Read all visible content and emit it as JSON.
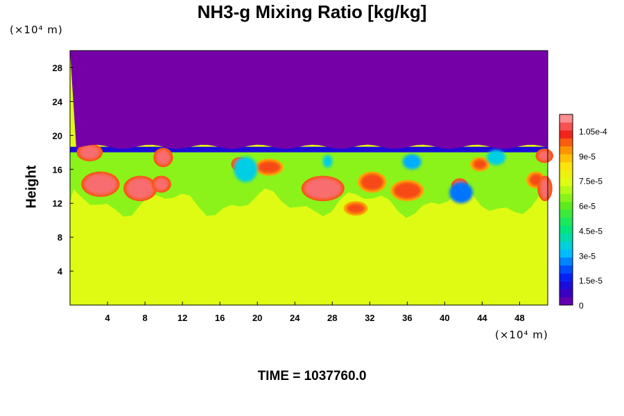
{
  "chart_data": {
    "type": "heatmap",
    "title": "NH3-g Mixing Ratio [kg/kg]",
    "ylabel": "Height",
    "xlabel": "",
    "x_unit": "(×10⁴ m)",
    "y_unit": "(×10⁴ m)",
    "xlim": [
      0,
      51
    ],
    "ylim": [
      0,
      30
    ],
    "xticks": [
      "4",
      "8",
      "12",
      "16",
      "20",
      "24",
      "28",
      "32",
      "36",
      "40",
      "44",
      "48"
    ],
    "yticks": [
      "4",
      "8",
      "12",
      "16",
      "20",
      "24",
      "28"
    ],
    "colorbar": {
      "range": [
        0,
        0.000115
      ],
      "ticks": [
        "0",
        "1.5e-5",
        "3e-5",
        "4.5e-5",
        "6e-5",
        "7.5e-5",
        "9e-5",
        "1.05e-4"
      ]
    },
    "footer": "TIME = 1037760.0",
    "layers": {
      "upper_region_value": 0,
      "upper_region_y_from": 18.5,
      "mixing_band_y": [
        12,
        18.5
      ],
      "mixing_band_value": 6.5e-05,
      "lower_region_value": 7.5e-05
    },
    "features": [
      {
        "kind": "patch",
        "x": 1.0,
        "y": 17.2,
        "w": 2.2,
        "h": 1.6,
        "value": 0.00011
      },
      {
        "kind": "patch",
        "x": 1.5,
        "y": 13.0,
        "w": 3.5,
        "h": 2.5,
        "value": 0.00011
      },
      {
        "kind": "patch",
        "x": 6.0,
        "y": 12.5,
        "w": 3.0,
        "h": 2.5,
        "value": 0.00011
      },
      {
        "kind": "patch",
        "x": 9.0,
        "y": 13.5,
        "w": 1.5,
        "h": 1.5,
        "value": 0.00011
      },
      {
        "kind": "patch",
        "x": 9.2,
        "y": 16.5,
        "w": 1.5,
        "h": 1.8,
        "value": 0.00011
      },
      {
        "kind": "patch",
        "x": 17.5,
        "y": 16.0,
        "w": 1.2,
        "h": 1.2,
        "value": 0.00011
      },
      {
        "kind": "patch",
        "x": 20.0,
        "y": 15.5,
        "w": 2.5,
        "h": 1.5,
        "value": 0.0001
      },
      {
        "kind": "patch",
        "x": 25.0,
        "y": 12.5,
        "w": 4.0,
        "h": 2.5,
        "value": 0.00011
      },
      {
        "kind": "patch",
        "x": 29.5,
        "y": 10.8,
        "w": 2.0,
        "h": 1.2,
        "value": 0.0001
      },
      {
        "kind": "patch",
        "x": 31.0,
        "y": 13.5,
        "w": 2.5,
        "h": 2.0,
        "value": 0.0001
      },
      {
        "kind": "patch",
        "x": 34.5,
        "y": 12.5,
        "w": 3.0,
        "h": 2.0,
        "value": 0.0001
      },
      {
        "kind": "patch",
        "x": 41.0,
        "y": 13.5,
        "w": 1.2,
        "h": 1.2,
        "value": 0.00011
      },
      {
        "kind": "patch",
        "x": 43.0,
        "y": 16.0,
        "w": 1.5,
        "h": 1.2,
        "value": 0.0001
      },
      {
        "kind": "patch",
        "x": 49.0,
        "y": 14.0,
        "w": 1.5,
        "h": 1.5,
        "value": 0.0001
      },
      {
        "kind": "patch",
        "x": 50.2,
        "y": 12.5,
        "w": 1.0,
        "h": 2.5,
        "value": 0.00011
      },
      {
        "kind": "patch",
        "x": 50.0,
        "y": 17.0,
        "w": 1.3,
        "h": 1.2,
        "value": 0.00011
      },
      {
        "kind": "dip",
        "x": 17.5,
        "y": 14.5,
        "w": 2.5,
        "h": 3.0,
        "value": 3.5e-05
      },
      {
        "kind": "dip",
        "x": 27.0,
        "y": 16.2,
        "w": 1.0,
        "h": 1.5,
        "value": 3.5e-05
      },
      {
        "kind": "dip",
        "x": 35.5,
        "y": 16.0,
        "w": 2.0,
        "h": 1.8,
        "value": 3e-05
      },
      {
        "kind": "dip",
        "x": 40.5,
        "y": 12.0,
        "w": 2.5,
        "h": 2.5,
        "value": 2.5e-05
      },
      {
        "kind": "dip",
        "x": 44.5,
        "y": 16.5,
        "w": 2.0,
        "h": 1.8,
        "value": 3.5e-05
      }
    ]
  }
}
